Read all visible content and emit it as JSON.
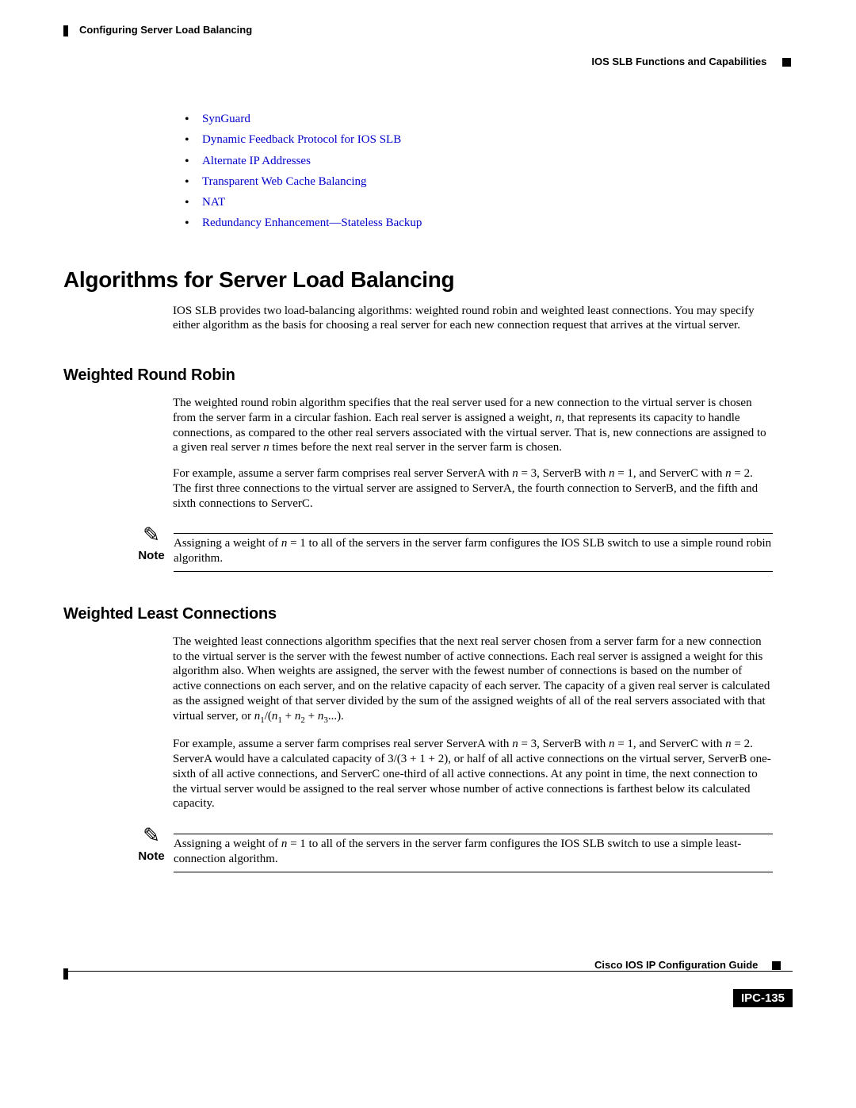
{
  "header": {
    "chapter_title": "Configuring Server Load Balancing",
    "section_title": "IOS SLB Functions and Capabilities"
  },
  "bullets": [
    "SynGuard",
    "Dynamic Feedback Protocol for IOS SLB",
    "Alternate IP Addresses",
    "Transparent Web Cache Balancing",
    "NAT",
    "Redundancy Enhancement—Stateless Backup"
  ],
  "h1": "Algorithms for Server Load Balancing",
  "intro": "IOS SLB provides two load-balancing algorithms: weighted round robin and weighted least connections. You may specify either algorithm as the basis for choosing a real server for each new connection request that arrives at the virtual server.",
  "wrr": {
    "heading": "Weighted Round Robin",
    "p1a": "The weighted round robin algorithm specifies that the real server used for a new connection to the virtual server is chosen from the server farm in a circular fashion. Each real server is assigned a weight, ",
    "p1n": "n",
    "p1b": ", that represents its capacity to handle connections, as compared to the other real servers associated with the virtual server. That is, new connections are assigned to a given real server ",
    "p1c": " times before the next real server in the server farm is chosen.",
    "p2a": "For example, assume a server farm comprises real server ServerA with ",
    "p2b": " = 3, ServerB with ",
    "p2c": " = 1, and ServerC with ",
    "p2d": " = 2. The first three connections to the virtual server are assigned to ServerA, the fourth connection to ServerB, and the fifth and sixth connections to ServerC.",
    "note_label": "Note",
    "note_a": "Assigning a weight of ",
    "note_b": " = 1 to all of the servers in the server farm configures the IOS SLB switch to use a simple round robin algorithm."
  },
  "wlc": {
    "heading": "Weighted Least Connections",
    "p1a": "The weighted least connections algorithm specifies that the next real server chosen from a server farm for a new connection to the virtual server is the server with the fewest number of active connections. Each real server is assigned a weight for this algorithm also. When weights are assigned, the server with the fewest number of connections is based on the number of active connections on each server, and on the relative capacity of each server. The capacity of a given real server is calculated as the assigned weight of that server divided by the sum of the assigned weights of all of the real servers associated with that virtual server, or ",
    "formula_n1": "n",
    "formula_s1": "1",
    "formula_slash": "/(",
    "formula_plus": " + ",
    "formula_s2": "2",
    "formula_s3": "3",
    "formula_end": "...).",
    "p2a": "For example, assume a server farm comprises real server ServerA with ",
    "p2b": " = 3, ServerB with ",
    "p2c": " = 1, and ServerC with ",
    "p2d": " = 2. ServerA would have a calculated capacity of 3/(3 + 1 + 2), or half of all active connections on the virtual server, ServerB one-sixth of all active connections, and ServerC one-third of all active connections. At any point in time, the next connection to the virtual server would be assigned to the real server whose number of active connections is farthest below its calculated capacity.",
    "note_label": "Note",
    "note_a": "Assigning a weight of ",
    "note_b": " = 1 to all of the servers in the server farm configures the IOS SLB switch to use a simple least-connection algorithm."
  },
  "footer": {
    "guide": "Cisco IOS IP Configuration Guide",
    "page": "IPC-135"
  },
  "colors": {
    "link": "#0000cc",
    "text": "#000000",
    "bg": "#ffffff"
  }
}
